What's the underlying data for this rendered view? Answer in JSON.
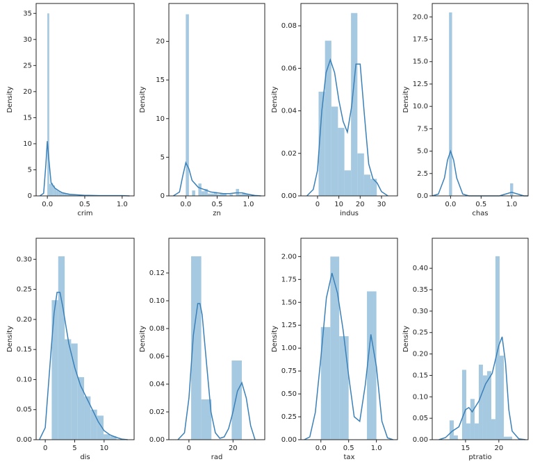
{
  "chart_data": [
    {
      "type": "histogram",
      "xlabel": "crim",
      "ylabel": "Density",
      "color": "#a5c9e1",
      "line_color": "#3a80b8",
      "xlim": [
        -0.15,
        1.16
      ],
      "ylim": [
        0,
        36.9
      ],
      "xticks": [
        {
          "value": 0,
          "label": "0.0"
        },
        {
          "value": 0.5,
          "label": "0.5"
        },
        {
          "value": 1,
          "label": "1.0"
        }
      ],
      "yticks": [
        0,
        5,
        10,
        15,
        20,
        25,
        30,
        35
      ],
      "bins": [
        0,
        0.025,
        0.05,
        0.075,
        0.1,
        0.125,
        0.15,
        0.175,
        0.2,
        0.225,
        0.25,
        0.275,
        0.3,
        0.325,
        0.35,
        0.375,
        0.4,
        0.425,
        0.45,
        0.475,
        0.5
      ],
      "values": [
        35,
        2.3,
        2.5,
        2.0,
        1.4,
        1.0,
        0.8,
        0.6,
        0.5,
        0.4,
        0.3,
        0.3,
        0.2,
        0.2,
        0.2,
        0.1,
        0.1,
        0.1,
        0.1,
        0.1
      ],
      "kde": {
        "x": [
          -0.1,
          -0.05,
          -0.02,
          0,
          0.02,
          0.05,
          0.1,
          0.15,
          0.2,
          0.3,
          0.5,
          0.7,
          1.0,
          1.1
        ],
        "values": [
          0,
          0.5,
          6,
          10.5,
          7,
          2.5,
          1.5,
          1.0,
          0.6,
          0.3,
          0.1,
          0.05,
          0.05,
          0
        ]
      }
    },
    {
      "type": "histogram",
      "xlabel": "zn",
      "ylabel": "Density",
      "color": "#a5c9e1",
      "line_color": "#3a80b8",
      "xlim": [
        -0.27,
        1.26
      ],
      "ylim": [
        0,
        24.9
      ],
      "xticks": [
        {
          "value": 0,
          "label": "0.0"
        },
        {
          "value": 0.5,
          "label": "0.5"
        },
        {
          "value": 1,
          "label": "1.0"
        }
      ],
      "yticks": [
        0,
        5,
        10,
        15,
        20
      ],
      "bins": [
        0,
        0.05,
        0.1,
        0.15,
        0.2,
        0.25,
        0.3,
        0.35,
        0.4,
        0.45,
        0.5,
        0.55,
        0.6,
        0.65,
        0.7,
        0.75,
        0.8,
        0.85,
        0.9,
        0.95,
        1.0
      ],
      "values": [
        23.5,
        0,
        0.7,
        0,
        1.6,
        0.6,
        0.9,
        0.3,
        0.3,
        0.5,
        0.2,
        0.3,
        0.3,
        0,
        0.2,
        0,
        0.9,
        0.2,
        0.4,
        0.3
      ],
      "kde": {
        "x": [
          -0.2,
          -0.1,
          -0.05,
          0,
          0.05,
          0.1,
          0.2,
          0.3,
          0.4,
          0.5,
          0.6,
          0.7,
          0.8,
          0.9,
          1.0,
          1.1,
          1.2
        ],
        "values": [
          0,
          0.5,
          2.5,
          4.3,
          3.5,
          2.0,
          1.1,
          0.8,
          0.5,
          0.4,
          0.3,
          0.3,
          0.4,
          0.4,
          0.2,
          0.05,
          0
        ]
      }
    },
    {
      "type": "histogram",
      "xlabel": "indus",
      "ylabel": "Density",
      "color": "#a5c9e1",
      "line_color": "#3a80b8",
      "xlim": [
        -7.8,
        37.5
      ],
      "ylim": [
        0,
        0.0905
      ],
      "xticks": [
        0,
        10,
        20,
        30
      ],
      "yticks": [
        {
          "value": 0,
          "label": "0.00"
        },
        {
          "value": 0.02,
          "label": "0.02"
        },
        {
          "value": 0.04,
          "label": "0.04"
        },
        {
          "value": 0.06,
          "label": "0.06"
        },
        {
          "value": 0.08,
          "label": "0.08"
        }
      ],
      "bins": [
        0.5,
        3.5,
        6.5,
        9.6,
        12.6,
        15.7,
        18.7,
        21.8,
        24.8,
        27.8
      ],
      "values": [
        0.049,
        0.073,
        0.042,
        0.032,
        0.012,
        0.086,
        0.02,
        0.01,
        0.008
      ],
      "kde": {
        "x": [
          -5,
          -2,
          0,
          2,
          4,
          6,
          8,
          10,
          12,
          14,
          16,
          18,
          20,
          22,
          24,
          26,
          28,
          30,
          33
        ],
        "values": [
          0,
          0.003,
          0.012,
          0.04,
          0.058,
          0.064,
          0.058,
          0.045,
          0.035,
          0.03,
          0.042,
          0.062,
          0.062,
          0.038,
          0.015,
          0.008,
          0.006,
          0.002,
          0
        ]
      }
    },
    {
      "type": "histogram",
      "xlabel": "chas",
      "ylabel": "Density",
      "color": "#a5c9e1",
      "line_color": "#3a80b8",
      "xlim": [
        -0.3,
        1.27
      ],
      "ylim": [
        0,
        21.5
      ],
      "xticks": [
        {
          "value": 0,
          "label": "0.0"
        },
        {
          "value": 0.5,
          "label": "0.5"
        },
        {
          "value": 1,
          "label": "1.0"
        }
      ],
      "yticks": [
        {
          "value": 0,
          "label": "0.0"
        },
        {
          "value": 2.5,
          "label": "2.5"
        },
        {
          "value": 5,
          "label": "5.0"
        },
        {
          "value": 7.5,
          "label": "7.5"
        },
        {
          "value": 10,
          "label": "10.0"
        },
        {
          "value": 12.5,
          "label": "12.5"
        },
        {
          "value": 15,
          "label": "15.0"
        },
        {
          "value": 17.5,
          "label": "17.5"
        },
        {
          "value": 20,
          "label": "20.0"
        }
      ],
      "bins": [
        -0.025,
        0.025,
        0.975,
        1.025
      ],
      "values": [
        20.5,
        0,
        1.4
      ],
      "kde": {
        "x": [
          -0.3,
          -0.2,
          -0.1,
          -0.05,
          0,
          0.05,
          0.1,
          0.2,
          0.3,
          0.5,
          0.7,
          0.8,
          0.9,
          1.0,
          1.1,
          1.2,
          1.27
        ],
        "values": [
          0,
          0.2,
          2.0,
          4.0,
          5.0,
          4.0,
          2.0,
          0.2,
          0,
          0,
          0,
          0,
          0.2,
          0.4,
          0.2,
          0,
          0
        ]
      }
    },
    {
      "type": "histogram",
      "xlabel": "dis",
      "ylabel": "Density",
      "color": "#a5c9e1",
      "line_color": "#3a80b8",
      "xlim": [
        -1.55,
        15.1
      ],
      "ylim": [
        0,
        0.335
      ],
      "xticks": [
        0,
        5,
        10
      ],
      "yticks": [
        {
          "value": 0,
          "label": "0.00"
        },
        {
          "value": 0.05,
          "label": "0.05"
        },
        {
          "value": 0.1,
          "label": "0.10"
        },
        {
          "value": 0.15,
          "label": "0.15"
        },
        {
          "value": 0.2,
          "label": "0.20"
        },
        {
          "value": 0.25,
          "label": "0.25"
        },
        {
          "value": 0.3,
          "label": "0.30"
        }
      ],
      "bins": [
        1.1,
        2.2,
        3.3,
        4.4,
        5.5,
        6.6,
        7.7,
        8.8,
        9.9,
        11.0,
        12.1
      ],
      "values": [
        0.232,
        0.305,
        0.167,
        0.16,
        0.104,
        0.072,
        0.05,
        0.04,
        0.009,
        0.006
      ],
      "kde": {
        "x": [
          -1,
          0,
          1,
          1.5,
          2,
          2.5,
          3,
          4,
          5,
          6,
          7,
          8,
          9,
          10,
          11,
          12,
          13,
          14
        ],
        "values": [
          0,
          0.02,
          0.15,
          0.21,
          0.245,
          0.245,
          0.22,
          0.16,
          0.12,
          0.09,
          0.07,
          0.05,
          0.03,
          0.015,
          0.008,
          0.004,
          0.001,
          0
        ]
      }
    },
    {
      "type": "histogram",
      "xlabel": "rad",
      "ylabel": "Density",
      "color": "#a5c9e1",
      "line_color": "#3a80b8",
      "xlim": [
        -9.1,
        34.4
      ],
      "ylim": [
        0,
        0.145
      ],
      "xticks": [
        0,
        20
      ],
      "yticks": [
        {
          "value": 0,
          "label": "0.00"
        },
        {
          "value": 0.02,
          "label": "0.02"
        },
        {
          "value": 0.04,
          "label": "0.04"
        },
        {
          "value": 0.06,
          "label": "0.06"
        },
        {
          "value": 0.08,
          "label": "0.08"
        },
        {
          "value": 0.1,
          "label": "0.10"
        },
        {
          "value": 0.12,
          "label": "0.12"
        }
      ],
      "bins": [
        1,
        5.6,
        10.2,
        14.8,
        19.4,
        24
      ],
      "values": [
        0.132,
        0.029,
        0,
        0,
        0.057
      ],
      "kde": {
        "x": [
          -5,
          -2,
          0,
          2,
          4,
          5,
          6,
          8,
          10,
          12,
          14,
          16,
          18,
          20,
          22,
          24,
          26,
          28,
          30
        ],
        "values": [
          0,
          0.005,
          0.03,
          0.075,
          0.098,
          0.098,
          0.09,
          0.055,
          0.02,
          0.005,
          0.001,
          0.002,
          0.008,
          0.02,
          0.035,
          0.041,
          0.03,
          0.01,
          0
        ]
      }
    },
    {
      "type": "histogram",
      "xlabel": "tax",
      "ylabel": "Density",
      "color": "#a5c9e1",
      "line_color": "#3a80b8",
      "xlim": [
        -0.36,
        1.38
      ],
      "ylim": [
        0,
        2.2
      ],
      "xticks": [
        {
          "value": 0,
          "label": "0.0"
        },
        {
          "value": 0.5,
          "label": "0.5"
        },
        {
          "value": 1,
          "label": "1.0"
        }
      ],
      "yticks": [
        {
          "value": 0,
          "label": "0.00"
        },
        {
          "value": 0.25,
          "label": "0.25"
        },
        {
          "value": 0.5,
          "label": "0.50"
        },
        {
          "value": 0.75,
          "label": "0.75"
        },
        {
          "value": 1,
          "label": "1.00"
        },
        {
          "value": 1.25,
          "label": "1.25"
        },
        {
          "value": 1.5,
          "label": "1.50"
        },
        {
          "value": 1.75,
          "label": "1.75"
        },
        {
          "value": 2,
          "label": "2.00"
        }
      ],
      "bins": [
        0,
        0.17,
        0.33,
        0.5,
        0.67,
        0.83,
        1.0
      ],
      "values": [
        1.23,
        2.0,
        1.13,
        0,
        0,
        1.62
      ],
      "kde": {
        "x": [
          -0.3,
          -0.2,
          -0.1,
          0,
          0.1,
          0.2,
          0.3,
          0.4,
          0.5,
          0.6,
          0.7,
          0.8,
          0.9,
          1.0,
          1.1,
          1.2,
          1.3
        ],
        "values": [
          0,
          0.03,
          0.3,
          0.9,
          1.55,
          1.82,
          1.6,
          1.2,
          0.7,
          0.25,
          0.2,
          0.6,
          1.15,
          0.8,
          0.2,
          0.02,
          0
        ]
      }
    },
    {
      "type": "histogram",
      "xlabel": "ptratio",
      "ylabel": "Density",
      "color": "#a5c9e1",
      "line_color": "#3a80b8",
      "xlim": [
        10.0,
        24.4
      ],
      "ylim": [
        0,
        0.47
      ],
      "xticks": [
        15,
        20
      ],
      "yticks": [
        {
          "value": 0,
          "label": "0.00"
        },
        {
          "value": 0.05,
          "label": "0.05"
        },
        {
          "value": 0.1,
          "label": "0.10"
        },
        {
          "value": 0.15,
          "label": "0.15"
        },
        {
          "value": 0.2,
          "label": "0.20"
        },
        {
          "value": 0.25,
          "label": "0.25"
        },
        {
          "value": 0.3,
          "label": "0.30"
        },
        {
          "value": 0.35,
          "label": "0.35"
        },
        {
          "value": 0.4,
          "label": "0.40"
        }
      ],
      "bins": [
        12.6,
        13.23,
        13.85,
        14.48,
        15.11,
        15.73,
        16.36,
        16.99,
        17.61,
        18.24,
        18.87,
        19.49,
        20.12,
        20.75,
        21.37,
        22.0
      ],
      "values": [
        0.045,
        0.01,
        0,
        0.163,
        0.038,
        0.095,
        0.038,
        0.175,
        0.15,
        0.16,
        0.048,
        0.428,
        0.196,
        0.007,
        0.007
      ],
      "kde": {
        "x": [
          11,
          12,
          13,
          14,
          15,
          15.5,
          16,
          17,
          18,
          19,
          20,
          20.5,
          21,
          21.5,
          22,
          23,
          24
        ],
        "values": [
          0,
          0.005,
          0.02,
          0.03,
          0.07,
          0.075,
          0.065,
          0.09,
          0.13,
          0.155,
          0.22,
          0.24,
          0.18,
          0.07,
          0.02,
          0.002,
          0
        ]
      }
    }
  ]
}
